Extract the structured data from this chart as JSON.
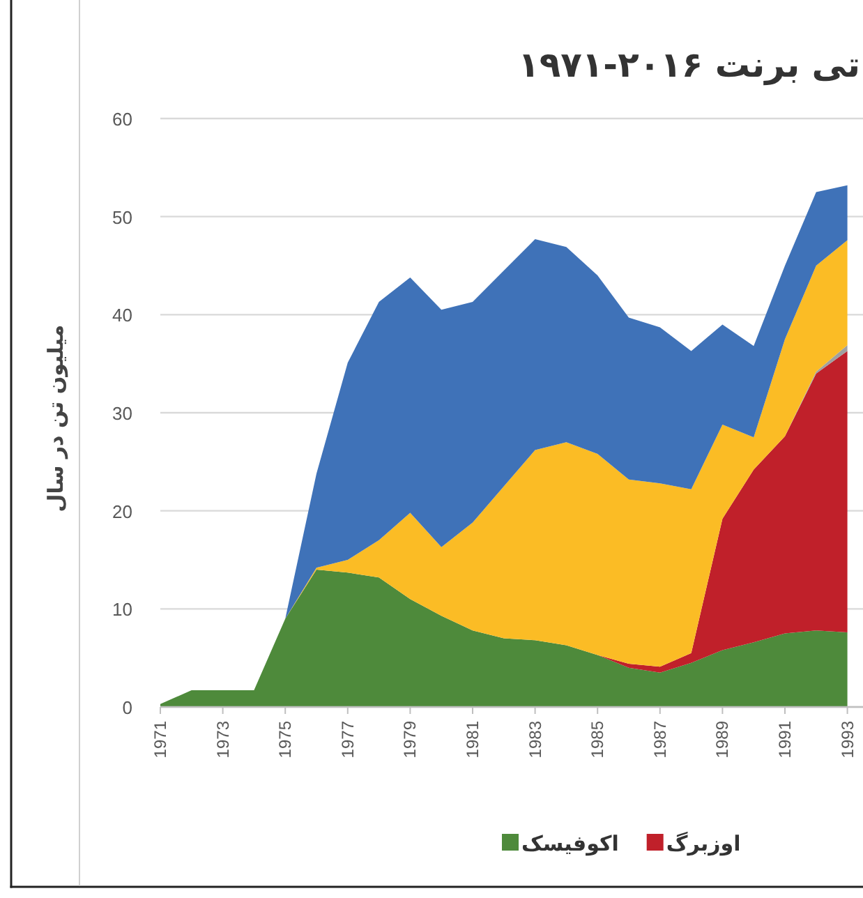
{
  "chart_data": {
    "type": "area",
    "stacked": true,
    "title": "تی برنت ۲۰۱۶-۱۹۷۱",
    "ylabel": "میلیون تن در سال",
    "x": [
      1971,
      1972,
      1973,
      1974,
      1975,
      1976,
      1977,
      1978,
      1979,
      1980,
      1981,
      1982,
      1983,
      1984,
      1985,
      1986,
      1987,
      1988,
      1989,
      1990,
      1991,
      1992,
      1993
    ],
    "xlim": [
      1971,
      1993.5
    ],
    "xticks": [
      1971,
      1973,
      1975,
      1977,
      1979,
      1981,
      1983,
      1985,
      1987,
      1989,
      1991,
      1993
    ],
    "ylim": [
      0,
      60
    ],
    "yticks": [
      0,
      10,
      20,
      30,
      40,
      50,
      60
    ],
    "grid": "y",
    "legend": "bottom",
    "series": [
      {
        "name": "اکوفیسک",
        "color": "#4e8a3b",
        "values": [
          0.3,
          1.7,
          1.7,
          1.7,
          9,
          14,
          13.7,
          13.2,
          11,
          9.3,
          7.8,
          7,
          6.8,
          6.3,
          5.3,
          4,
          3.5,
          4.5,
          5.8,
          6.6,
          7.5,
          7.8,
          7.6
        ]
      },
      {
        "name": "اوزبرگ",
        "color": "#c0202a",
        "values": [
          0,
          0,
          0,
          0,
          0,
          0,
          0,
          0,
          0,
          0,
          0,
          0,
          0,
          0,
          0,
          0.4,
          0.6,
          1,
          13.4,
          17.6,
          20.1,
          26.2,
          28.7
        ]
      },
      {
        "color": "#a0a0a0",
        "values": [
          0,
          0,
          0,
          0,
          0,
          0,
          0,
          0,
          0,
          0,
          0,
          0,
          0,
          0,
          0,
          0,
          0,
          0,
          0,
          0,
          0,
          0.2,
          0.6
        ]
      },
      {
        "color": "#fbbc25",
        "values": [
          0,
          0,
          0,
          0,
          0,
          0.2,
          1.3,
          3.8,
          8.8,
          7,
          11,
          15.5,
          19.4,
          20.7,
          20.5,
          18.8,
          18.7,
          16.7,
          9.6,
          3.3,
          9.9,
          10.8,
          10.7
        ]
      },
      {
        "color": "#3f72b8",
        "values": [
          0,
          0,
          0,
          0,
          0,
          9.6,
          20.1,
          24.3,
          24,
          24.2,
          22.5,
          22,
          21.5,
          19.9,
          18.2,
          16.5,
          15.9,
          14.1,
          10.2,
          9.3,
          7.5,
          7.5,
          5.6
        ]
      }
    ]
  }
}
